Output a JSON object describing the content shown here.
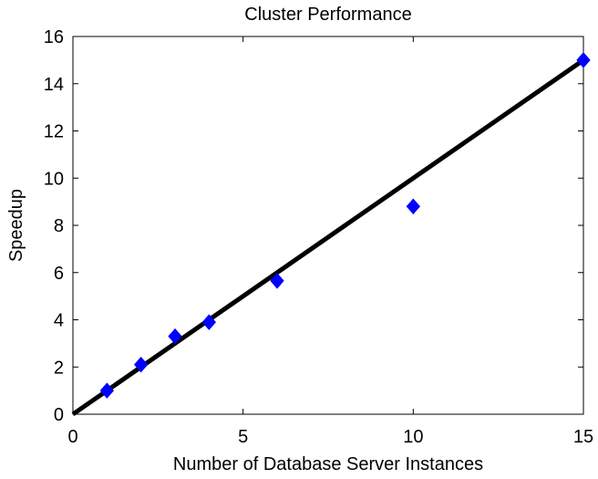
{
  "chart_data": {
    "type": "scatter",
    "title": "Cluster Performance",
    "xlabel": "Number of Database Server Instances",
    "ylabel": "Speedup",
    "xlim": [
      0,
      15
    ],
    "ylim": [
      0,
      16
    ],
    "xticks": [
      0,
      5,
      10,
      15
    ],
    "yticks": [
      0,
      2,
      4,
      6,
      8,
      10,
      12,
      14,
      16
    ],
    "grid": false,
    "legend": "none",
    "series": [
      {
        "kind": "scatter",
        "marker": "diamond",
        "color": "#0000ff",
        "points": [
          {
            "x": 1,
            "y": 1.0
          },
          {
            "x": 2,
            "y": 2.1
          },
          {
            "x": 3,
            "y": 3.3
          },
          {
            "x": 4,
            "y": 3.9
          },
          {
            "x": 6,
            "y": 5.65
          },
          {
            "x": 10,
            "y": 8.8
          },
          {
            "x": 15,
            "y": 15.0
          }
        ]
      },
      {
        "kind": "line",
        "color": "#000000",
        "points": [
          {
            "x": 0,
            "y": 0
          },
          {
            "x": 15,
            "y": 15
          }
        ]
      }
    ]
  }
}
